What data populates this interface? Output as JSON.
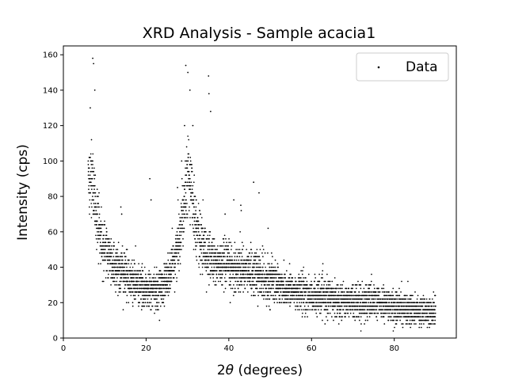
{
  "chart_data": {
    "type": "scatter",
    "title": "XRD Analysis - Sample acacia1",
    "xlabel_prefix": "2",
    "xlabel_theta": "θ",
    "xlabel_suffix": " (degrees)",
    "ylabel": "Intensity (cps)",
    "xlim": [
      0,
      95
    ],
    "ylim": [
      0,
      165
    ],
    "xticks": [
      0,
      20,
      40,
      60,
      80
    ],
    "yticks": [
      0,
      20,
      40,
      60,
      80,
      100,
      120,
      140,
      160
    ],
    "grid": false,
    "legend": {
      "position": "top-right",
      "entries": [
        "Data"
      ]
    },
    "x_start": 6.0,
    "x_end": 90.0,
    "x_step": 0.02,
    "intensity_step": 2,
    "baseline_profile": {
      "x": [
        6,
        7,
        8,
        9,
        10,
        12,
        14,
        16,
        18,
        20,
        22,
        24,
        26,
        28,
        29,
        30,
        31,
        32,
        33,
        35,
        37,
        40,
        45,
        50,
        55,
        60,
        65,
        70,
        75,
        80,
        85,
        90
      ],
      "y": [
        95,
        88,
        70,
        57,
        50,
        42,
        38,
        34,
        30,
        27,
        26,
        30,
        37,
        55,
        75,
        95,
        82,
        66,
        56,
        46,
        42,
        40,
        38,
        32,
        27,
        24,
        22,
        21,
        20,
        18,
        16,
        15
      ]
    },
    "series": [
      {
        "name": "Data",
        "color": "#000000",
        "marker": "point",
        "highlight_points": {
          "x": [
            6.5,
            7.1,
            7.3,
            7.6,
            13.9,
            14.1,
            20.9,
            21.2,
            27.6,
            28.6,
            29.3,
            29.6,
            30.1,
            30.6,
            31.3,
            35.1,
            35.2,
            35.6,
            39.1,
            41.2,
            42.9,
            43.0,
            46.0,
            47.3,
            49.5
          ],
          "y": [
            130,
            158,
            155,
            140,
            74,
            70,
            90,
            78,
            85,
            100,
            120,
            154,
            150,
            140,
            120,
            148,
            138,
            128,
            70,
            78,
            75,
            72,
            88,
            82,
            62
          ]
        }
      }
    ]
  }
}
